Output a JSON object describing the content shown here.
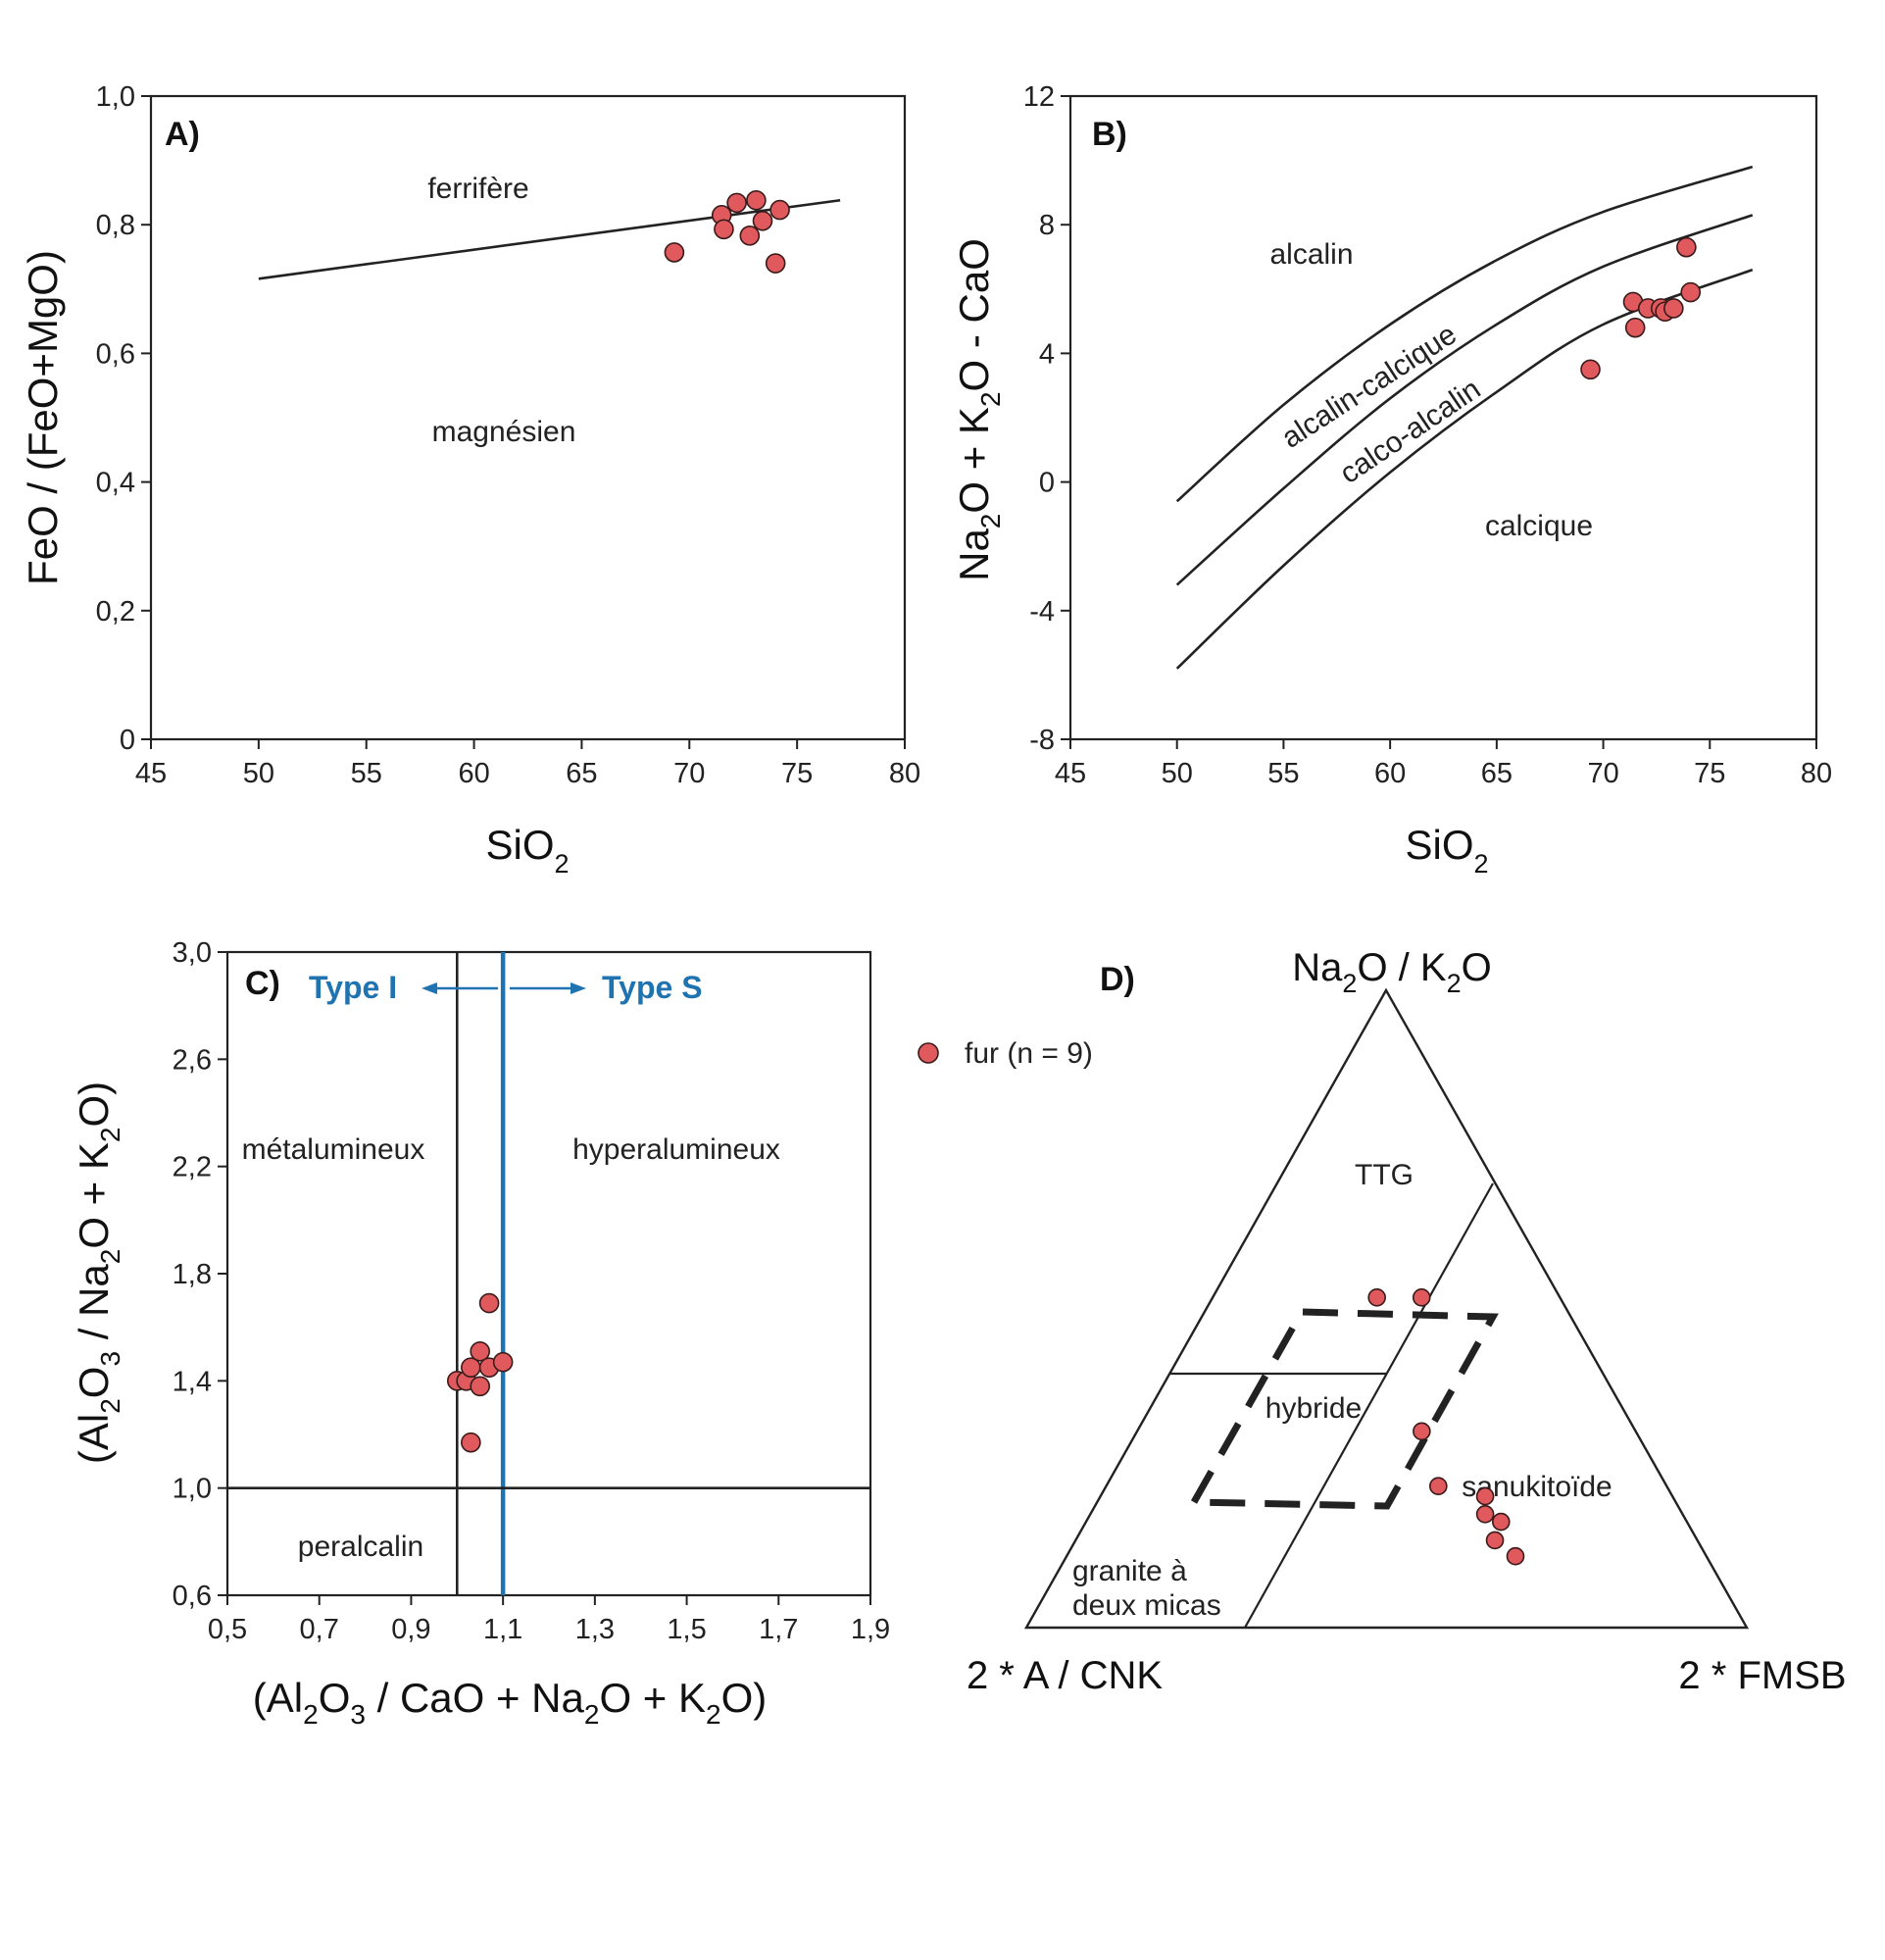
{
  "legend": {
    "label": "fur (n = 9)",
    "color": "#e05a5d"
  },
  "chart_data": [
    {
      "panel": "A)",
      "type": "scatter",
      "xlabel": "SiO",
      "xlabel_sub": "2",
      "ylabel": "FeO / (FeO+MgO)",
      "xlim": [
        45,
        80
      ],
      "ylim": [
        0,
        1.0
      ],
      "xticks": [
        "45",
        "50",
        "55",
        "60",
        "65",
        "70",
        "75",
        "80"
      ],
      "yticks": [
        "0",
        "0,2",
        "0,4",
        "0,6",
        "0,8",
        "1,0"
      ],
      "fields": [
        "ferrifère",
        "magnésien"
      ],
      "boundary": [
        [
          50,
          0.716
        ],
        [
          77,
          0.838
        ]
      ],
      "series": [
        {
          "name": "fur (n = 9)",
          "x": [
            69.3,
            71.5,
            71.6,
            72.2,
            72.8,
            73.1,
            73.4,
            74.0,
            74.2
          ],
          "y": [
            0.757,
            0.815,
            0.793,
            0.834,
            0.783,
            0.838,
            0.806,
            0.74,
            0.823
          ]
        }
      ]
    },
    {
      "panel": "B)",
      "type": "scatter",
      "xlabel": "SiO",
      "xlabel_sub": "2",
      "ylabel": "Na2O + K2O - CaO",
      "xlim": [
        45,
        80
      ],
      "ylim": [
        -8,
        12
      ],
      "xticks": [
        "45",
        "50",
        "55",
        "60",
        "65",
        "70",
        "75",
        "80"
      ],
      "yticks": [
        "-8",
        "-4",
        "0",
        "4",
        "8",
        "12"
      ],
      "fields": [
        "alcalin",
        "alcalin-calcique",
        "calco-alcalin",
        "calcique"
      ],
      "curves": [
        [
          [
            50,
            -0.6
          ],
          [
            55,
            2.4
          ],
          [
            60,
            4.9
          ],
          [
            65,
            6.9
          ],
          [
            70,
            8.4
          ],
          [
            77,
            9.8
          ]
        ],
        [
          [
            50,
            -3.2
          ],
          [
            55,
            -0.2
          ],
          [
            60,
            2.6
          ],
          [
            65,
            4.9
          ],
          [
            70,
            6.7
          ],
          [
            77,
            8.3
          ]
        ],
        [
          [
            50,
            -5.8
          ],
          [
            55,
            -2.6
          ],
          [
            60,
            0.3
          ],
          [
            65,
            2.8
          ],
          [
            70,
            4.9
          ],
          [
            77,
            6.6
          ]
        ]
      ],
      "series": [
        {
          "name": "fur (n = 9)",
          "x": [
            69.4,
            71.4,
            71.5,
            72.1,
            72.7,
            72.9,
            73.3,
            73.9,
            74.1
          ],
          "y": [
            3.5,
            5.6,
            4.8,
            5.4,
            5.4,
            5.3,
            5.4,
            7.3,
            5.9
          ]
        }
      ]
    },
    {
      "panel": "C)",
      "type": "scatter",
      "xlabel": "(Al2O3 / CaO + Na2O + K2O)",
      "ylabel": "(Al2O3 / Na2O + K2O)",
      "xlim": [
        0.5,
        1.9
      ],
      "ylim": [
        0.6,
        3.0
      ],
      "xticks": [
        "0,5",
        "0,7",
        "0,9",
        "1,1",
        "1,3",
        "1,5",
        "1,7",
        "1,9"
      ],
      "yticks": [
        "0,6",
        "1,0",
        "1,4",
        "1,8",
        "2,2",
        "2,6",
        "3,0"
      ],
      "fields": [
        "métalumineux",
        "hyperalumineux",
        "peralcalin"
      ],
      "type_labels": {
        "left": "Type I",
        "right": "Type S",
        "color": "#1e73b0"
      },
      "series": [
        {
          "name": "fur (n = 9)",
          "x": [
            1.0,
            1.02,
            1.03,
            1.03,
            1.05,
            1.05,
            1.07,
            1.07,
            1.1
          ],
          "y": [
            1.4,
            1.4,
            1.45,
            1.17,
            1.51,
            1.38,
            1.45,
            1.69,
            1.47
          ]
        }
      ]
    },
    {
      "panel": "D)",
      "type": "scatter",
      "vertices": [
        "Na2O / K2O",
        "2 * A / CNK",
        "2 * FMSB"
      ],
      "fields": [
        "TTG",
        "hybride",
        "sanukitoïde",
        "granite à",
        "deux micas"
      ],
      "series": [
        {
          "name": "fur (n = 9)",
          "points_ternary": [
            [
              0.518,
              0.254,
              0.228
            ],
            [
              0.518,
              0.192,
              0.29
            ],
            [
              0.308,
              0.297,
              0.395
            ],
            [
              0.222,
              0.317,
              0.461
            ],
            [
              0.206,
              0.26,
              0.534
            ],
            [
              0.178,
              0.274,
              0.548
            ],
            [
              0.166,
              0.258,
              0.576
            ],
            [
              0.137,
              0.281,
              0.582
            ],
            [
              0.112,
              0.265,
              0.623
            ]
          ]
        }
      ]
    }
  ]
}
